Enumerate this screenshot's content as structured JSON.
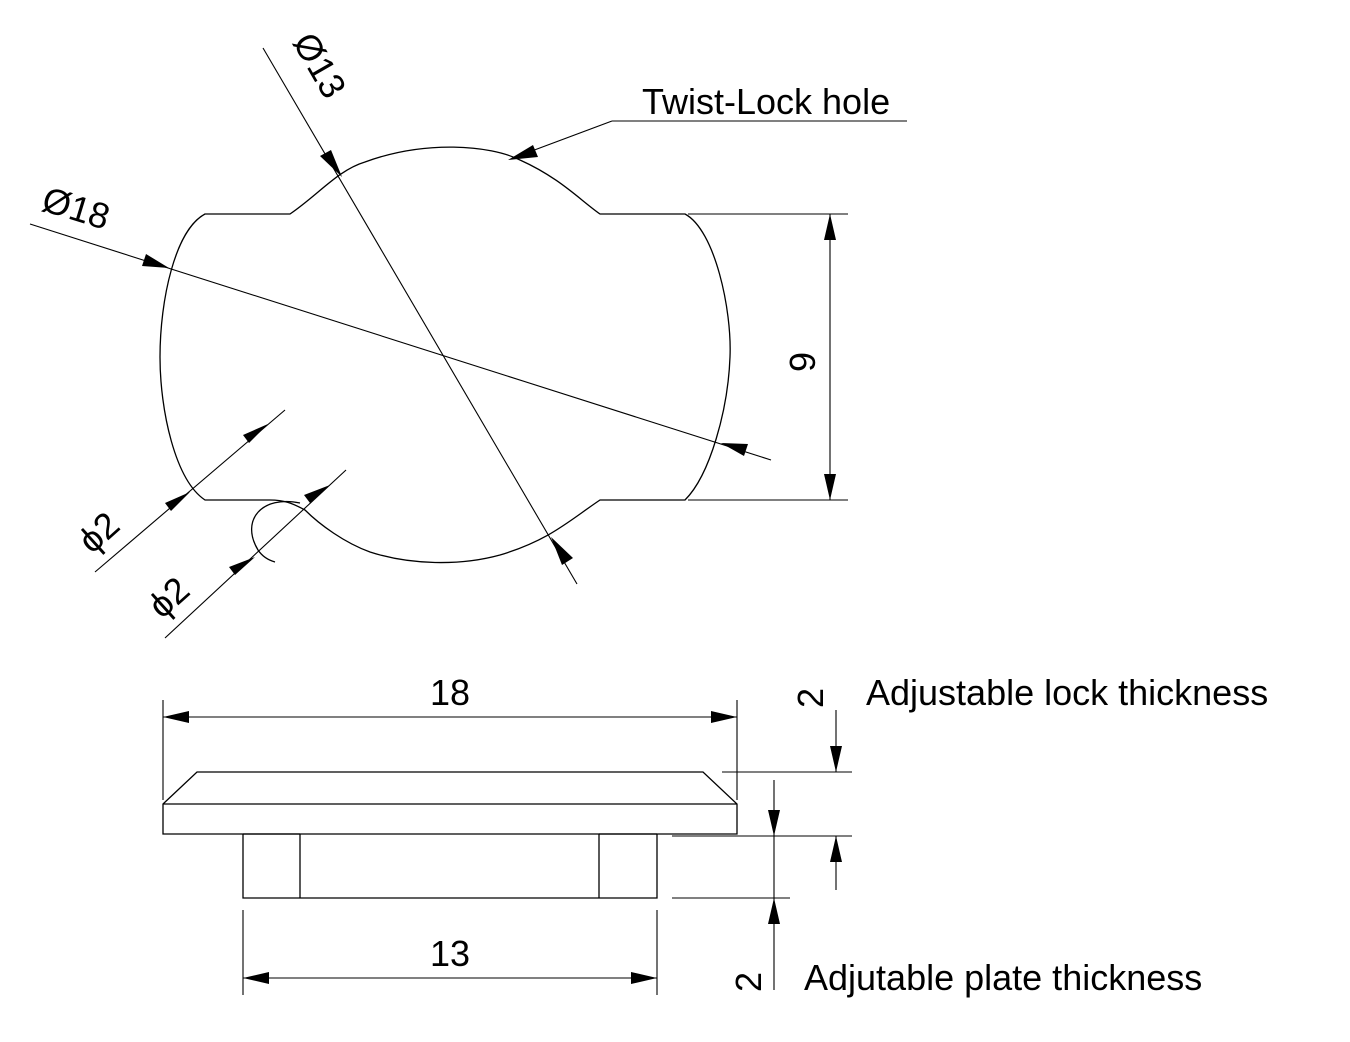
{
  "top_view": {
    "callout_label": "Twist-Lock hole",
    "dim_outer_diameter": "Ø18",
    "dim_lock_diameter": "Ø13",
    "dim_height": "9",
    "dim_corner_radius_1": "ϕ2",
    "dim_corner_radius_2": "ϕ2"
  },
  "side_view": {
    "dim_overall_width": "18",
    "dim_boss_width": "13",
    "dim_lock_thickness": "2",
    "label_lock_thickness": "Adjustable lock thickness",
    "dim_plate_thickness": "2",
    "label_plate_thickness": "Adjutable plate thickness"
  }
}
